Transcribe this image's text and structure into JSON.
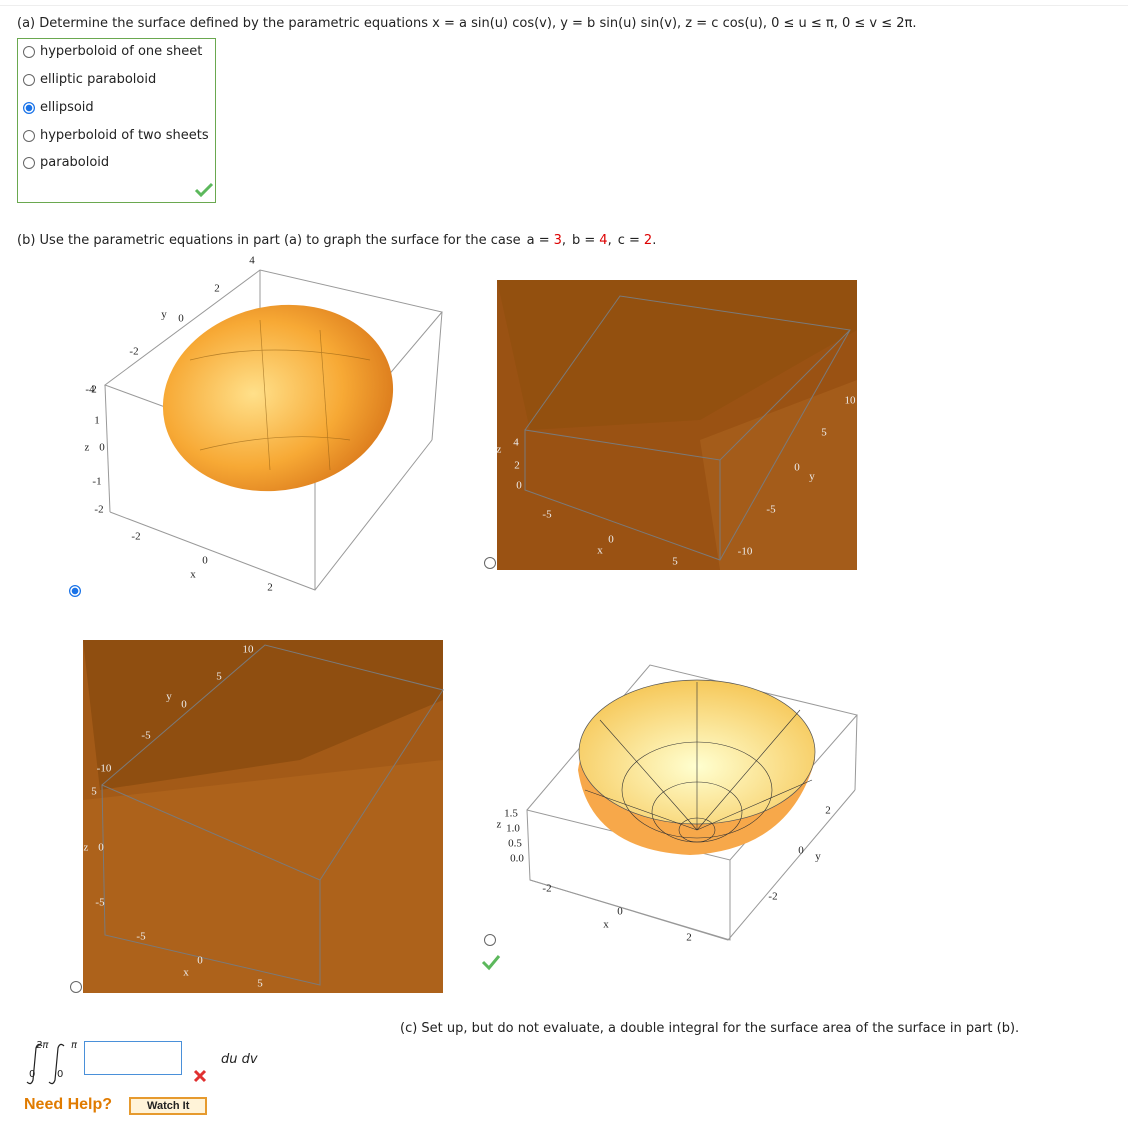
{
  "part_a": {
    "prompt": "(a) Determine the surface defined by the parametric equations x = a sin(u) cos(v), y = b sin(u) sin(v), z = c cos(u), 0 ≤ u ≤ π, 0 ≤ v ≤ 2π.",
    "options": [
      "hyperboloid of one sheet",
      "elliptic paraboloid",
      "ellipsoid",
      "hyperboloid of two sheets",
      "paraboloid"
    ],
    "selected": 2
  },
  "part_b": {
    "prompt": "(b) Use the parametric equations in part (a) to graph the surface for the case",
    "params": [
      {
        "name": "a =",
        "value": 3
      },
      {
        "name": "b =",
        "value": 4
      },
      {
        "name": "c =",
        "value": 2
      }
    ],
    "selected": 0,
    "plots": [
      {
        "ticks": [
          "4",
          "2",
          "y",
          "0",
          "-2",
          "-4",
          "2",
          "1",
          "z",
          "0",
          "-1",
          "-2",
          "-2",
          "0",
          "x",
          "2"
        ]
      },
      {
        "ticks": [
          "4",
          "z",
          "2",
          "0",
          "-5",
          "0",
          "x",
          "5",
          "-10",
          "-5",
          "0",
          "y",
          "5",
          "10"
        ]
      },
      {
        "ticks": [
          "10",
          "5",
          "y",
          "0",
          "-5",
          "-10",
          "5",
          "z",
          "0",
          "-5",
          "-5",
          "0",
          "x",
          "5"
        ]
      },
      {
        "ticks": [
          "1.5",
          "z",
          "1.0",
          "0.5",
          "0.0",
          "-2",
          "0",
          "x",
          "2",
          "-2",
          "0",
          "y",
          "2"
        ]
      }
    ]
  },
  "part_c": {
    "prompt": "(c) Set up, but do not evaluate, a double integral for the surface area of the surface in part (b).",
    "outer_upper": "2π",
    "outer_lower": "0",
    "inner_upper": "π",
    "inner_lower": "0",
    "differentials": "du dv",
    "help": "Need Help?",
    "watch": "Watch It"
  }
}
